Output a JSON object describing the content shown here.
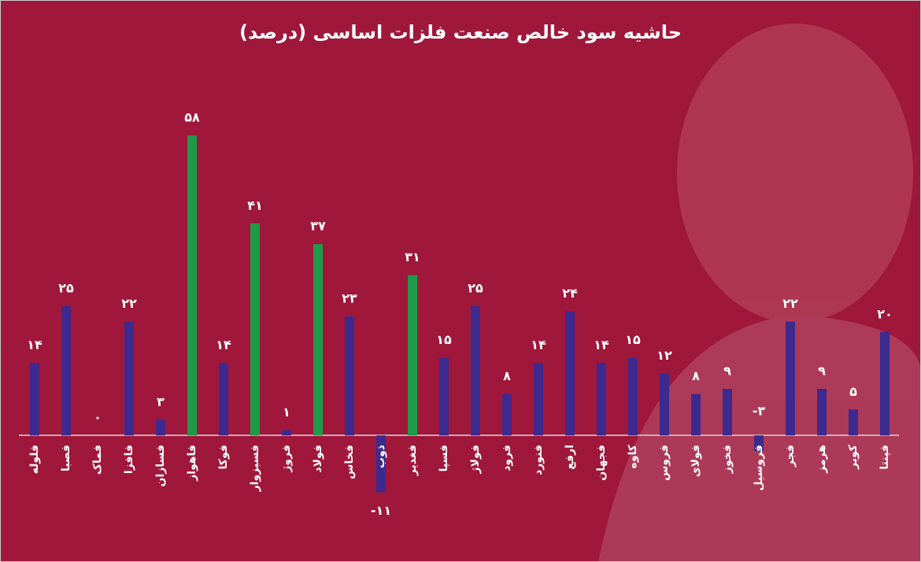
{
  "chart_data": {
    "type": "bar",
    "title": "حاشیه سود خالص صنعت فلزات اساسی (درصد)",
    "categories": [
      "فلوله",
      "فصبا",
      "فماک",
      "فافزا",
      "فسازان",
      "فاهواز",
      "فوکا",
      "فسبزوار",
      "فروژ",
      "فولاد",
      "فخاس",
      "ذوب",
      "فغدیر",
      "فسپا",
      "فولاژ",
      "فرود",
      "فنورد",
      "ارفع",
      "فجهان",
      "کاوه",
      "فروس",
      "فولای",
      "فخوز",
      "فروسیل",
      "فجر",
      "هرمز",
      "کویر",
      "فپنتا"
    ],
    "values": [
      14,
      25,
      0,
      22,
      3,
      58,
      14,
      41,
      1,
      37,
      23,
      -11,
      31,
      15,
      25,
      8,
      14,
      24,
      14,
      15,
      12,
      8,
      9,
      -3,
      22,
      9,
      5,
      20
    ],
    "value_labels": [
      "۱۴",
      "۲۵",
      "۰",
      "۲۲",
      "۳",
      "۵۸",
      "۱۴",
      "۴۱",
      "۱",
      "۳۷",
      "۲۳",
      "-۱۱",
      "۳۱",
      "۱۵",
      "۲۵",
      "۸",
      "۱۴",
      "۲۴",
      "۱۴",
      "۱۵",
      "۱۲",
      "۸",
      "۹",
      "-۳",
      "۲۲",
      "۹",
      "۵",
      "۲۰"
    ],
    "colors": [
      "#3d2a8e",
      "#3d2a8e",
      "#3d2a8e",
      "#3d2a8e",
      "#3d2a8e",
      "#1f9a48",
      "#3d2a8e",
      "#1f9a48",
      "#3d2a8e",
      "#1f9a48",
      "#3d2a8e",
      "#3d2a8e",
      "#1f9a48",
      "#3d2a8e",
      "#3d2a8e",
      "#3d2a8e",
      "#3d2a8e",
      "#3d2a8e",
      "#3d2a8e",
      "#3d2a8e",
      "#3d2a8e",
      "#3d2a8e",
      "#3d2a8e",
      "#3d2a8e",
      "#3d2a8e",
      "#3d2a8e",
      "#3d2a8e",
      "#3d2a8e"
    ],
    "ylim": [
      -12,
      60
    ]
  }
}
